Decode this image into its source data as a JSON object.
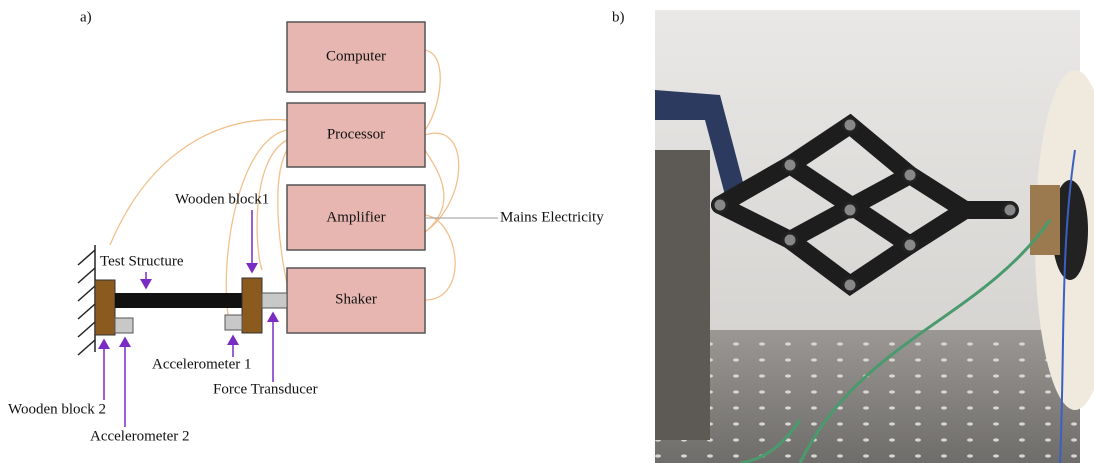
{
  "panels": [
    {
      "label": "a)"
    },
    {
      "label": "b)"
    }
  ],
  "boxes": [
    {
      "label": "Computer"
    },
    {
      "label": "Processor"
    },
    {
      "label": "Amplifier"
    },
    {
      "label": "Shaker"
    }
  ],
  "annotations": [
    {
      "label": "Wooden block1"
    },
    {
      "label": "Test Structure"
    },
    {
      "label": "Mains Electricity"
    },
    {
      "label": "Accelerometer 1"
    },
    {
      "label": "Force Transducer"
    },
    {
      "label": "Wooden block 2"
    },
    {
      "label": "Accelerometer 2"
    }
  ]
}
